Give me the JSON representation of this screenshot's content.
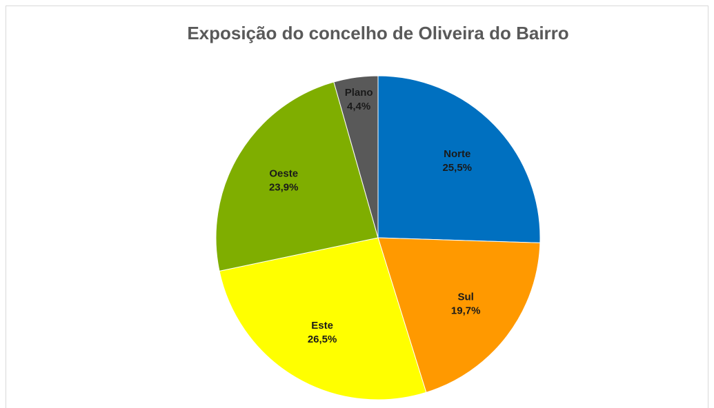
{
  "chart_data": {
    "type": "pie",
    "title": "Exposição do concelho de Oliveira do Bairro",
    "categories": [
      "Norte",
      "Sul",
      "Este",
      "Oeste",
      "Plano"
    ],
    "values": [
      25.5,
      19.7,
      26.5,
      23.9,
      4.4
    ],
    "value_labels": [
      "25,5%",
      "19,7%",
      "26,5%",
      "23,9%",
      "4,4%"
    ],
    "colors": [
      "#0070c0",
      "#ff9900",
      "#ffff00",
      "#7fae00",
      "#595959"
    ]
  }
}
